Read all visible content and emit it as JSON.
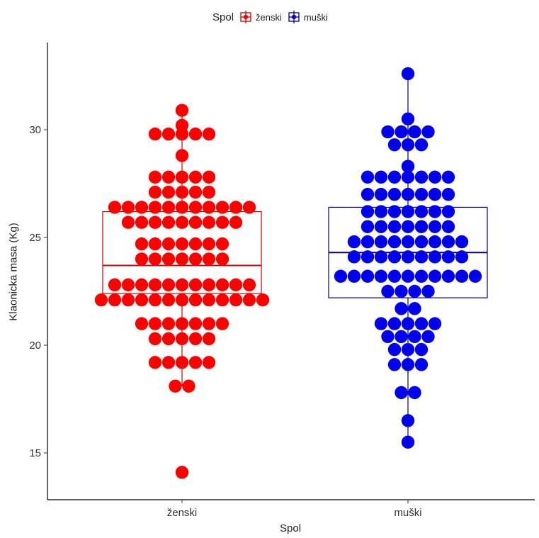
{
  "legend": {
    "title": "Spol",
    "items": [
      {
        "label": "ženski",
        "color": "#ff0000",
        "edge": "#d00000"
      },
      {
        "label": "muški",
        "color": "#0000ee",
        "edge": "#00008b"
      }
    ]
  },
  "chart_data": {
    "type": "dot-box",
    "xlabel": "Spol",
    "ylabel": "Klaonicka masa (Kg)",
    "ylim": [
      13,
      33.5
    ],
    "yticks": [
      15,
      20,
      25,
      30
    ],
    "categories": [
      "ženski",
      "muški"
    ],
    "grid": false,
    "legend_position": "top",
    "series": [
      {
        "name": "ženski",
        "box": {
          "q1": 22.4,
          "median": 23.7,
          "q3": 26.2,
          "whisker_low": 18.1,
          "whisker_high": 30.9
        },
        "dot_rows": [
          {
            "y": 30.9,
            "n": 1
          },
          {
            "y": 30.2,
            "n": 1
          },
          {
            "y": 29.8,
            "n": 5
          },
          {
            "y": 28.8,
            "n": 1
          },
          {
            "y": 27.8,
            "n": 5
          },
          {
            "y": 27.1,
            "n": 5
          },
          {
            "y": 26.4,
            "n": 11
          },
          {
            "y": 25.7,
            "n": 9
          },
          {
            "y": 24.7,
            "n": 7
          },
          {
            "y": 24.0,
            "n": 7
          },
          {
            "y": 22.8,
            "n": 11
          },
          {
            "y": 22.1,
            "n": 13
          },
          {
            "y": 21.0,
            "n": 7
          },
          {
            "y": 20.3,
            "n": 5
          },
          {
            "y": 19.2,
            "n": 5
          },
          {
            "y": 18.1,
            "n": 2
          },
          {
            "y": 14.1,
            "n": 1
          }
        ]
      },
      {
        "name": "muški",
        "box": {
          "q1": 22.2,
          "median": 24.3,
          "q3": 26.4,
          "whisker_low": 15.5,
          "whisker_high": 32.6
        },
        "dot_rows": [
          {
            "y": 32.6,
            "n": 1
          },
          {
            "y": 30.5,
            "n": 1
          },
          {
            "y": 29.9,
            "n": 4
          },
          {
            "y": 29.3,
            "n": 3
          },
          {
            "y": 28.3,
            "n": 1
          },
          {
            "y": 27.8,
            "n": 7
          },
          {
            "y": 27.0,
            "n": 7
          },
          {
            "y": 26.2,
            "n": 7
          },
          {
            "y": 25.5,
            "n": 7
          },
          {
            "y": 24.8,
            "n": 9
          },
          {
            "y": 24.1,
            "n": 9
          },
          {
            "y": 23.2,
            "n": 11
          },
          {
            "y": 22.5,
            "n": 4
          },
          {
            "y": 21.7,
            "n": 2
          },
          {
            "y": 21.0,
            "n": 5
          },
          {
            "y": 20.4,
            "n": 4
          },
          {
            "y": 19.8,
            "n": 3
          },
          {
            "y": 19.1,
            "n": 3
          },
          {
            "y": 17.8,
            "n": 2
          },
          {
            "y": 16.5,
            "n": 1
          },
          {
            "y": 15.5,
            "n": 1
          }
        ]
      }
    ]
  }
}
